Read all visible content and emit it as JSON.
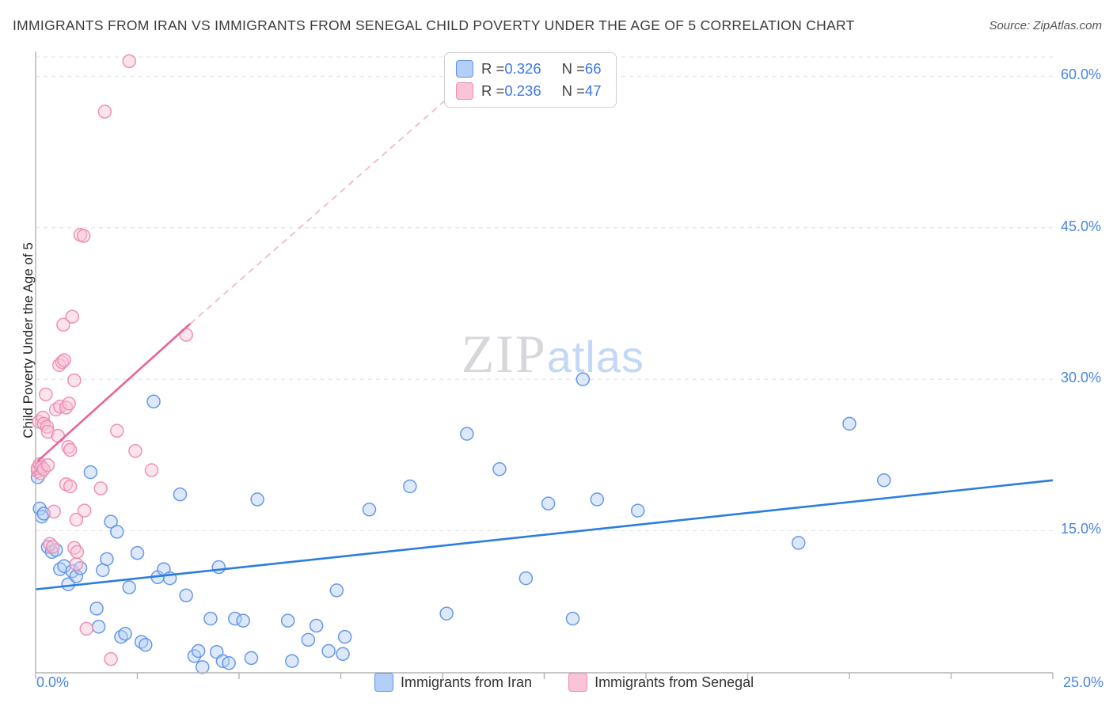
{
  "header": {
    "title": "IMMIGRANTS FROM IRAN VS IMMIGRANTS FROM SENEGAL CHILD POVERTY UNDER THE AGE OF 5 CORRELATION CHART",
    "source": "Source: ZipAtlas.com"
  },
  "axes": {
    "y_label": "Child Poverty Under the Age of 5",
    "y_ticks": [
      "60.0%",
      "45.0%",
      "30.0%",
      "15.0%"
    ],
    "x_min_label": "0.0%",
    "x_max_label": "25.0%"
  },
  "stats_legend": {
    "rows": [
      {
        "r_label": "R = ",
        "r": "0.326",
        "n_label": "N = ",
        "n": "66"
      },
      {
        "r_label": "R = ",
        "r": "0.236",
        "n_label": "N = ",
        "n": "47"
      }
    ]
  },
  "watermark": {
    "zip": "ZIP",
    "atlas": "atlas"
  },
  "bottom_legend": [
    {
      "label": "Immigrants from Iran"
    },
    {
      "label": "Immigrants from Senegal"
    }
  ],
  "colors": {
    "tick_label_blue": "#4a86e0",
    "grid_gray": "#e1e1e1",
    "iran_fill": "#b3cff7",
    "iran_stroke": "#5e93e6",
    "iran_trend": "#2b7de0",
    "senegal_fill": "#f9c3d8",
    "senegal_stroke": "#ef8ab2",
    "senegal_trend": "#e8639c"
  },
  "chart_data": {
    "type": "scatter",
    "title": "Immigrants from Iran vs Immigrants from Senegal Child Poverty under the Age of 5 Correlation Chart",
    "xlabel": "",
    "ylabel": "Child Poverty Under the Age of 5",
    "x_range": [
      0,
      25
    ],
    "y_range": [
      0,
      62
    ],
    "grid_y_values": [
      15,
      30,
      45,
      60
    ],
    "x_tick_step": 2.5,
    "legend_position": "bottom-center",
    "series": [
      {
        "name": "Immigrants from Iran",
        "r": 0.326,
        "n": 66,
        "fill": "#b3cff7",
        "stroke": "#5e93e6",
        "points": [
          [
            0.05,
            20.3
          ],
          [
            0.1,
            17.2
          ],
          [
            0.15,
            16.4
          ],
          [
            0.2,
            16.7
          ],
          [
            0.3,
            13.4
          ],
          [
            0.4,
            12.9
          ],
          [
            0.5,
            13.1
          ],
          [
            0.6,
            11.2
          ],
          [
            0.7,
            11.5
          ],
          [
            0.8,
            9.7
          ],
          [
            0.9,
            11.0
          ],
          [
            1.0,
            10.5
          ],
          [
            1.1,
            11.3
          ],
          [
            1.35,
            20.8
          ],
          [
            1.5,
            7.3
          ],
          [
            1.55,
            5.5
          ],
          [
            1.65,
            11.1
          ],
          [
            1.75,
            12.2
          ],
          [
            1.85,
            15.9
          ],
          [
            2.0,
            14.9
          ],
          [
            2.1,
            4.5
          ],
          [
            2.2,
            4.8
          ],
          [
            2.3,
            9.4
          ],
          [
            2.5,
            12.8
          ],
          [
            2.6,
            4.0
          ],
          [
            2.7,
            3.7
          ],
          [
            2.9,
            27.8
          ],
          [
            3.0,
            10.4
          ],
          [
            3.15,
            11.2
          ],
          [
            3.3,
            10.3
          ],
          [
            3.55,
            18.6
          ],
          [
            3.7,
            8.6
          ],
          [
            3.9,
            2.6
          ],
          [
            4.0,
            3.1
          ],
          [
            4.1,
            1.5
          ],
          [
            4.3,
            6.3
          ],
          [
            4.45,
            3.0
          ],
          [
            4.5,
            11.4
          ],
          [
            4.6,
            2.1
          ],
          [
            4.75,
            1.9
          ],
          [
            4.9,
            6.3
          ],
          [
            5.1,
            6.1
          ],
          [
            5.3,
            2.4
          ],
          [
            5.45,
            18.1
          ],
          [
            6.2,
            6.1
          ],
          [
            6.3,
            2.1
          ],
          [
            6.7,
            4.2
          ],
          [
            6.9,
            5.6
          ],
          [
            7.2,
            3.1
          ],
          [
            7.4,
            9.1
          ],
          [
            7.55,
            2.8
          ],
          [
            7.6,
            4.5
          ],
          [
            8.2,
            17.1
          ],
          [
            9.2,
            19.4
          ],
          [
            10.1,
            6.8
          ],
          [
            10.6,
            24.6
          ],
          [
            11.4,
            21.1
          ],
          [
            12.05,
            10.3
          ],
          [
            12.6,
            17.7
          ],
          [
            13.2,
            6.3
          ],
          [
            13.45,
            30.0
          ],
          [
            13.8,
            18.1
          ],
          [
            14.8,
            17.0
          ],
          [
            18.75,
            13.8
          ],
          [
            20.0,
            25.6
          ],
          [
            20.85,
            20.0
          ]
        ],
        "trend": {
          "x1": 0,
          "y1": 9.2,
          "x2": 25,
          "y2": 20.0,
          "color": "#2b7de0",
          "style": "solid"
        }
      },
      {
        "name": "Immigrants from Senegal",
        "r": 0.236,
        "n": 47,
        "fill": "#f9c3d8",
        "stroke": "#ef8ab2",
        "points": [
          [
            0.05,
            20.9
          ],
          [
            0.05,
            21.2
          ],
          [
            0.08,
            25.8
          ],
          [
            0.1,
            21.6
          ],
          [
            0.12,
            20.7
          ],
          [
            0.15,
            21.3
          ],
          [
            0.18,
            26.2
          ],
          [
            0.2,
            21.1
          ],
          [
            0.2,
            25.6
          ],
          [
            0.25,
            28.5
          ],
          [
            0.28,
            25.3
          ],
          [
            0.3,
            21.5
          ],
          [
            0.3,
            24.8
          ],
          [
            0.35,
            13.7
          ],
          [
            0.42,
            13.4
          ],
          [
            0.45,
            16.9
          ],
          [
            0.5,
            27.0
          ],
          [
            0.55,
            24.4
          ],
          [
            0.58,
            31.4
          ],
          [
            0.6,
            27.3
          ],
          [
            0.65,
            31.7
          ],
          [
            0.68,
            35.4
          ],
          [
            0.7,
            31.9
          ],
          [
            0.75,
            19.6
          ],
          [
            0.75,
            27.2
          ],
          [
            0.8,
            23.3
          ],
          [
            0.82,
            27.6
          ],
          [
            0.85,
            19.4
          ],
          [
            0.85,
            23.0
          ],
          [
            0.9,
            36.2
          ],
          [
            0.95,
            13.3
          ],
          [
            0.95,
            29.9
          ],
          [
            1.0,
            16.1
          ],
          [
            1.0,
            11.7
          ],
          [
            1.02,
            12.9
          ],
          [
            1.1,
            44.3
          ],
          [
            1.18,
            44.2
          ],
          [
            1.2,
            17.0
          ],
          [
            1.25,
            5.3
          ],
          [
            1.6,
            19.2
          ],
          [
            1.7,
            56.5
          ],
          [
            1.85,
            2.3
          ],
          [
            2.0,
            24.9
          ],
          [
            2.3,
            61.5
          ],
          [
            2.45,
            22.9
          ],
          [
            2.85,
            21.0
          ],
          [
            3.7,
            34.4
          ]
        ],
        "trend": {
          "x1": 0.05,
          "y1": 21.9,
          "x2": 3.8,
          "y2": 35.5,
          "color": "#e8639c",
          "style": "solid",
          "extension": {
            "x2": 10.6,
            "y2": 59.5,
            "color": "#f3b7cd",
            "style": "dashed"
          }
        }
      }
    ]
  }
}
